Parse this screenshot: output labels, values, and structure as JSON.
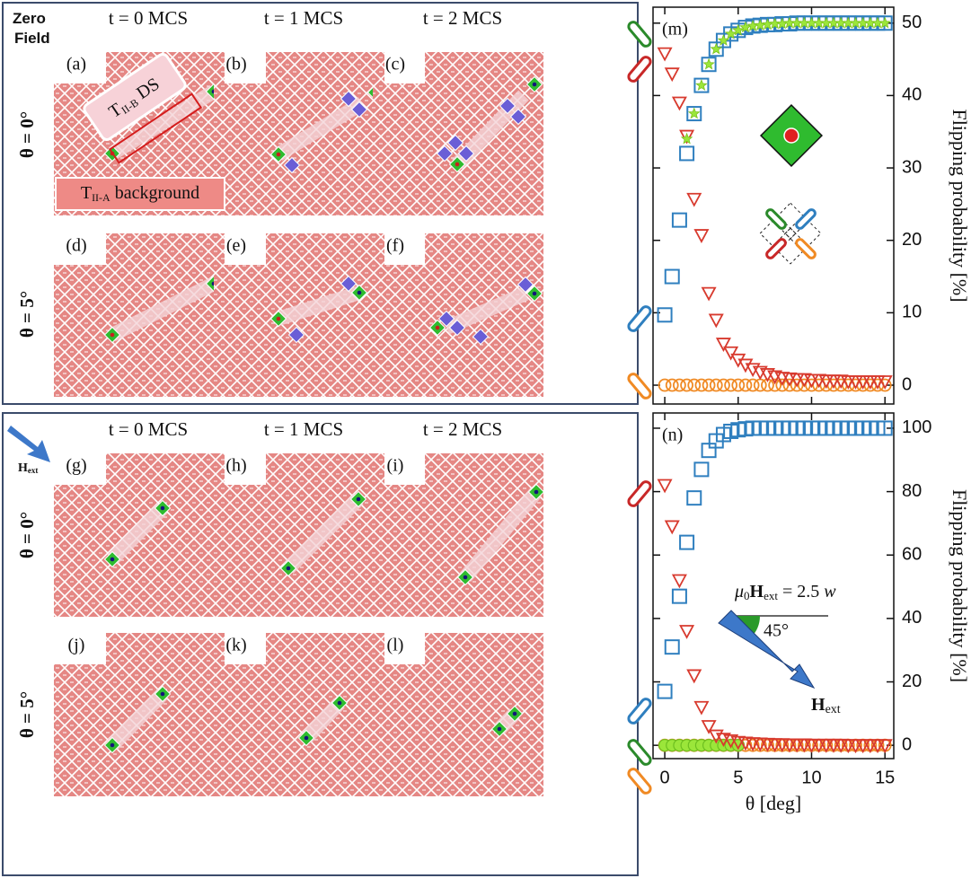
{
  "left": {
    "zero_field": [
      "Zero",
      "Field"
    ],
    "field_label": {
      "main": "H",
      "sub": "ext"
    },
    "top_columns": [
      "t = 0 MCS",
      "t = 1 MCS",
      "t = 2 MCS"
    ],
    "bottom_columns": [
      "t = 0 MCS",
      "t = 1 MCS",
      "t = 2 MCS"
    ],
    "top_rows": [
      "θ = 0°",
      "θ = 5°"
    ],
    "bottom_rows": [
      "θ = 0°",
      "θ = 5°"
    ],
    "panel_letters": [
      "(a)",
      "(b)",
      "(c)",
      "(d)",
      "(e)",
      "(f)",
      "(g)",
      "(h)",
      "(i)",
      "(j)",
      "(k)",
      "(l)"
    ],
    "ds_label": {
      "main": "T",
      "sub": "II-B",
      "rest": " DS"
    },
    "bg_label": {
      "main": "T",
      "sub": "II-A",
      "rest": " background"
    }
  },
  "chart_data": [
    {
      "type": "scatter",
      "panel_label": "(m)",
      "ylabel": "Flipping probability [%]",
      "xlim": [
        -0.8,
        15.6
      ],
      "xticks": [
        0,
        5,
        10,
        15
      ],
      "ylim": [
        -2.6,
        52.2
      ],
      "yticks": [
        0,
        10,
        20,
        30,
        40,
        50
      ],
      "series": [
        {
          "color": "#f08a24",
          "marker": "circle",
          "x": [
            0,
            0.5,
            1,
            1.5,
            2,
            2.5,
            3,
            3.5,
            4,
            4.5,
            5,
            5.5,
            6,
            6.5,
            7,
            7.5,
            8,
            8.5,
            9,
            9.5,
            10,
            10.5,
            11,
            11.5,
            12,
            12.5,
            13,
            13.5,
            14,
            14.5,
            15
          ],
          "values": [
            0,
            0,
            0,
            0,
            0,
            0,
            0,
            0,
            0,
            0,
            0,
            0,
            0,
            0,
            0,
            0,
            0,
            0,
            0,
            0,
            0,
            0,
            0,
            0,
            0,
            0,
            0,
            0,
            0,
            0,
            0
          ]
        },
        {
          "color": "#d83a2e",
          "marker": "triangle-down",
          "x": [
            0,
            0.5,
            1,
            1.5,
            2,
            2.5,
            3,
            3.5,
            4,
            4.5,
            5,
            5.5,
            6,
            6.5,
            7,
            7.5,
            8,
            8.5,
            9,
            9.5,
            10,
            10.5,
            11,
            11.5,
            12,
            12.5,
            13,
            13.5,
            14,
            14.5,
            15
          ],
          "values": [
            45.8,
            43,
            39,
            34.4,
            25.7,
            20.7,
            12.7,
            9,
            5.7,
            4.5,
            3.5,
            2.8,
            2.2,
            1.8,
            1.5,
            1.2,
            1,
            0.9,
            0.8,
            0.8,
            0.7,
            0.7,
            0.6,
            0.6,
            0.6,
            0.5,
            0.5,
            0.5,
            0.5,
            0.5,
            0.5
          ]
        },
        {
          "color": "#2f7fbf",
          "marker": "square",
          "x": [
            0,
            0.5,
            1,
            1.5,
            2,
            2.5,
            3,
            3.5,
            4,
            4.5,
            5,
            5.5,
            6,
            6.5,
            7,
            7.5,
            8,
            8.5,
            9,
            9.5,
            10,
            10.5,
            11,
            11.5,
            12,
            12.5,
            13,
            13.5,
            14,
            14.5,
            15
          ],
          "values": [
            9.7,
            15,
            22.8,
            32,
            37.5,
            41.4,
            44.3,
            46.4,
            47.6,
            48.5,
            49,
            49.4,
            49.6,
            49.7,
            49.8,
            49.8,
            49.9,
            49.9,
            50,
            50,
            50,
            50,
            50,
            50,
            50,
            50,
            50,
            50,
            50,
            50,
            50
          ]
        },
        {
          "color": "#9be63a",
          "marker": "star",
          "x": [
            1.5,
            2,
            2.5,
            3,
            3.5,
            4,
            4.5,
            5,
            5.5,
            6,
            6.5,
            7,
            7.5,
            8,
            8.5,
            9,
            9.5,
            10,
            10.5,
            11,
            11.5,
            12,
            12.5,
            13,
            13.5,
            14,
            14.5,
            15
          ],
          "values": [
            34,
            37.5,
            41.4,
            44.3,
            46.4,
            47.6,
            48.5,
            49,
            49.4,
            49.6,
            49.7,
            49.8,
            49.9,
            49.9,
            50,
            50,
            50,
            50,
            50,
            50,
            50,
            50,
            50,
            50,
            50,
            50,
            50,
            50
          ]
        }
      ]
    },
    {
      "type": "scatter",
      "panel_label": "(n)",
      "ylabel": "Flipping probability [%]",
      "xlabel": "θ [deg]",
      "xlim": [
        -0.8,
        15.6
      ],
      "xticks": [
        0,
        5,
        10,
        15
      ],
      "ylim": [
        -4.2,
        104.8
      ],
      "yticks": [
        0,
        20,
        40,
        60,
        80,
        100
      ],
      "annotation": [
        "μ",
        "0",
        "H",
        "ext",
        " = 2.5 ",
        "w"
      ],
      "angle_label": "45°",
      "arrow_label": {
        "main": "H",
        "sub": "ext"
      },
      "series": [
        {
          "color": "#f08a24",
          "marker": "circle",
          "x": [
            0,
            0.5,
            1,
            1.5,
            2,
            2.5,
            3,
            3.5,
            4,
            4.5,
            5,
            5.5,
            6,
            6.5,
            7,
            7.5,
            8,
            8.5,
            9,
            9.5,
            10,
            10.5,
            11,
            11.5,
            12,
            12.5,
            13,
            13.5,
            14,
            14.5,
            15
          ],
          "values": [
            0,
            0,
            0,
            0,
            0,
            0,
            0,
            0,
            0,
            0,
            0,
            0,
            0,
            0,
            0,
            0,
            0,
            0,
            0,
            0,
            0,
            0,
            0,
            0,
            0,
            0,
            0,
            0,
            0,
            0,
            0
          ]
        },
        {
          "color": "#9be63a",
          "marker": "circle-filled",
          "x": [
            0,
            0.5,
            1,
            1.5,
            2,
            2.5,
            3,
            3.5,
            4,
            4.5,
            5
          ],
          "values": [
            0,
            0,
            0,
            0,
            0,
            0,
            0,
            0,
            0,
            0,
            0
          ]
        },
        {
          "color": "#2f7fbf",
          "marker": "square",
          "x": [
            0,
            0.5,
            1,
            1.5,
            2,
            2.5,
            3,
            3.5,
            4,
            4.5,
            5,
            5.5,
            6,
            6.5,
            7,
            7.5,
            8,
            8.5,
            9,
            9.5,
            10,
            10.5,
            11,
            11.5,
            12,
            12.5,
            13,
            13.5,
            14,
            14.5,
            15
          ],
          "values": [
            17,
            31,
            47,
            64,
            78,
            87,
            93,
            96,
            98,
            99,
            99.5,
            99.8,
            100,
            100,
            100,
            100,
            100,
            100,
            100,
            100,
            100,
            100,
            100,
            100,
            100,
            100,
            100,
            100,
            100,
            100,
            100
          ]
        },
        {
          "color": "#d83a2e",
          "marker": "triangle-down",
          "x": [
            0,
            0.5,
            1,
            1.5,
            2,
            2.5,
            3,
            3.5,
            4,
            4.5,
            5,
            5.5,
            6,
            6.5,
            7,
            7.5,
            8,
            8.5,
            9,
            9.5,
            10,
            10.5,
            11,
            11.5,
            12,
            12.5,
            13,
            13.5,
            14,
            14.5,
            15
          ],
          "values": [
            82,
            69,
            52,
            36,
            22,
            12,
            6,
            3,
            2,
            1.5,
            1,
            0.8,
            0.6,
            0.5,
            0.4,
            0.3,
            0.3,
            0.2,
            0.2,
            0.2,
            0.1,
            0.1,
            0.1,
            0.1,
            0.1,
            0,
            0,
            0,
            0,
            0,
            0
          ]
        }
      ]
    }
  ]
}
